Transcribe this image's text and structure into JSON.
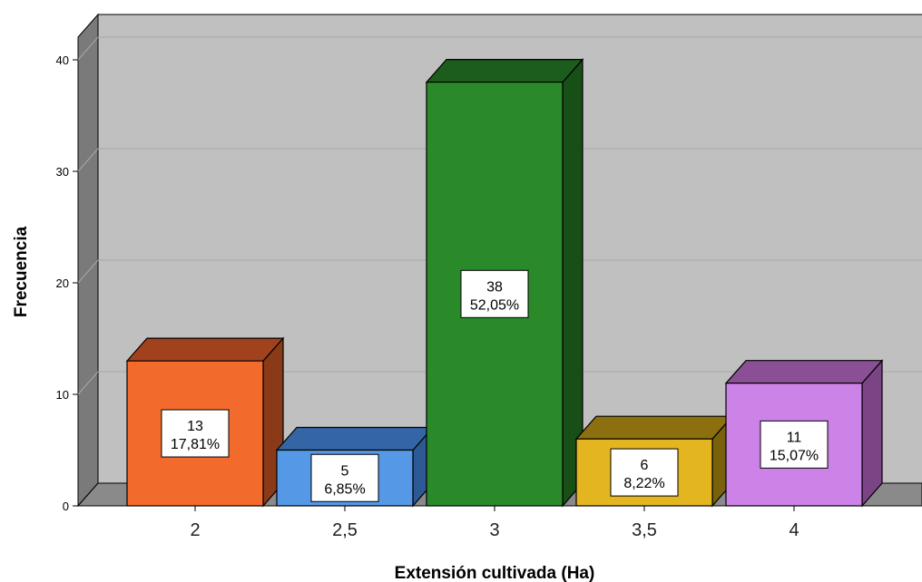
{
  "chart_data": {
    "type": "bar",
    "xlabel": "Extensión cultivada (Ha)",
    "ylabel": "Frecuencia",
    "ylim": [
      0,
      40
    ],
    "yticks": [
      "0",
      "10",
      "20",
      "30",
      "40"
    ],
    "grid": true,
    "three_d": true,
    "categories": [
      "2",
      "2,5",
      "3",
      "3,5",
      "4"
    ],
    "values": [
      13,
      5,
      38,
      6,
      11
    ],
    "labels": [
      [
        "13",
        "17,81%"
      ],
      [
        "5",
        "6,85%"
      ],
      [
        "38",
        "52,05%"
      ],
      [
        "6",
        "8,22%"
      ],
      [
        "11",
        "15,07%"
      ]
    ],
    "colors": [
      {
        "front": "#f26b2c",
        "top": "#a2421c",
        "side": "#8a3a17"
      },
      {
        "front": "#5599e6",
        "top": "#3466a6",
        "side": "#2d5a94"
      },
      {
        "front": "#2a8a2a",
        "top": "#1c5c1c",
        "side": "#174f17"
      },
      {
        "front": "#e3b520",
        "top": "#8c700f",
        "side": "#7a610c"
      },
      {
        "front": "#cc82e6",
        "top": "#8a4f94",
        "side": "#7b4585"
      }
    ]
  }
}
